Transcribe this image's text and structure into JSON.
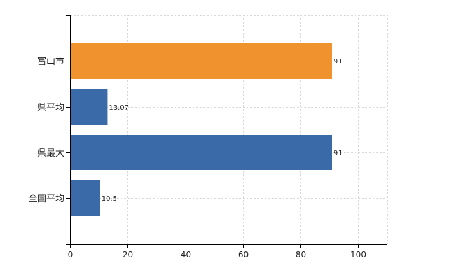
{
  "chart_data": {
    "type": "bar",
    "orientation": "horizontal",
    "title": "",
    "xlabel": "",
    "ylabel": "",
    "xlim": [
      0,
      110
    ],
    "x_ticks": [
      0,
      20,
      40,
      60,
      80,
      100
    ],
    "grid": true,
    "legend": "none",
    "categories": [
      "富山市",
      "県平均",
      "県最大",
      "全国平均"
    ],
    "values": [
      91,
      13.07,
      91,
      10.5
    ],
    "data_labels": [
      "91",
      "13.07",
      "91",
      "10.5"
    ],
    "colors": [
      "#f0932e",
      "#3a6aa8",
      "#3a6aa8",
      "#3a6aa8"
    ]
  }
}
